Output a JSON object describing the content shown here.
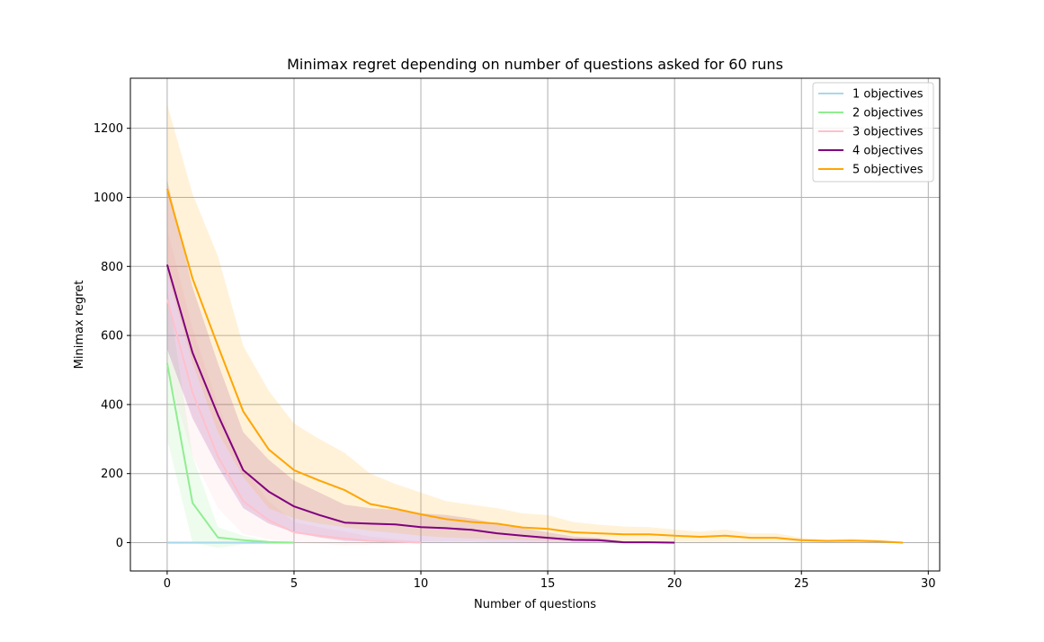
{
  "chart_data": {
    "type": "line",
    "title": "Minimax regret depending on number of questions asked for 60 runs",
    "xlabel": "Number of questions",
    "ylabel": "Minimax regret",
    "xlim": [
      -1.45,
      30.45
    ],
    "ylim": [
      -82,
      1345
    ],
    "xticks": [
      0,
      5,
      10,
      15,
      20,
      25,
      30
    ],
    "yticks": [
      0,
      200,
      400,
      600,
      800,
      1000,
      1200
    ],
    "grid": true,
    "legend_position": "top-right",
    "series": [
      {
        "name": "1 objectives",
        "color": "#a8d8ea",
        "x": [
          0,
          1,
          2,
          3,
          4,
          5
        ],
        "values": [
          0,
          0,
          0,
          0,
          0,
          0
        ],
        "lower": [
          -4,
          -4,
          -4,
          -4,
          -4,
          -4
        ],
        "upper": [
          4,
          4,
          4,
          4,
          4,
          4
        ]
      },
      {
        "name": "2 objectives",
        "color": "#90ee90",
        "x": [
          0,
          1,
          2,
          3,
          4,
          5
        ],
        "values": [
          520,
          115,
          15,
          7,
          2,
          0
        ],
        "lower": [
          300,
          0,
          -15,
          -5,
          -2,
          0
        ],
        "upper": [
          740,
          250,
          45,
          20,
          5,
          2
        ]
      },
      {
        "name": "3 objectives",
        "color": "#ffc0cb",
        "x": [
          0,
          1,
          2,
          3,
          4,
          5,
          6,
          7,
          8,
          9,
          10
        ],
        "values": [
          705,
          435,
          250,
          120,
          65,
          30,
          20,
          12,
          5,
          3,
          0
        ],
        "lower": [
          500,
          250,
          100,
          25,
          10,
          0,
          -3,
          -8,
          -6,
          -4,
          -2
        ],
        "upper": [
          910,
          620,
          400,
          215,
          120,
          60,
          45,
          32,
          18,
          10,
          4
        ]
      },
      {
        "name": "4 objectives",
        "color": "#800080",
        "x": [
          0,
          1,
          2,
          3,
          4,
          5,
          6,
          7,
          8,
          9,
          10,
          11,
          12,
          13,
          14,
          15,
          16,
          17,
          18,
          19,
          20
        ],
        "values": [
          805,
          550,
          370,
          210,
          148,
          105,
          80,
          58,
          55,
          53,
          45,
          42,
          37,
          27,
          20,
          14,
          8,
          7,
          1,
          1,
          0
        ],
        "lower": [
          560,
          360,
          220,
          100,
          55,
          30,
          15,
          5,
          3,
          2,
          2,
          2,
          2,
          1,
          0,
          0,
          0,
          0,
          0,
          0,
          0
        ],
        "upper": [
          1050,
          740,
          520,
          320,
          240,
          180,
          145,
          110,
          100,
          95,
          85,
          80,
          70,
          55,
          42,
          30,
          18,
          14,
          4,
          3,
          1
        ]
      },
      {
        "name": "5 objectives",
        "color": "#ffa500",
        "x": [
          0,
          1,
          2,
          3,
          4,
          5,
          6,
          7,
          8,
          9,
          10,
          11,
          12,
          13,
          14,
          15,
          16,
          17,
          18,
          19,
          20,
          21,
          22,
          23,
          24,
          25,
          26,
          27,
          28,
          29
        ],
        "values": [
          1025,
          765,
          570,
          380,
          270,
          210,
          180,
          152,
          112,
          98,
          82,
          68,
          60,
          55,
          44,
          40,
          30,
          27,
          24,
          24,
          20,
          17,
          20,
          14,
          14,
          7,
          5,
          6,
          4,
          0
        ],
        "lower": [
          780,
          520,
          320,
          190,
          100,
          70,
          55,
          45,
          35,
          28,
          20,
          15,
          12,
          10,
          8,
          6,
          5,
          4,
          3,
          3,
          3,
          2,
          2,
          2,
          2,
          1,
          1,
          1,
          0,
          0
        ],
        "upper": [
          1270,
          1010,
          830,
          570,
          440,
          345,
          300,
          260,
          200,
          170,
          145,
          120,
          110,
          100,
          85,
          80,
          60,
          52,
          47,
          45,
          38,
          32,
          38,
          27,
          27,
          14,
          10,
          12,
          8,
          1
        ]
      }
    ]
  }
}
